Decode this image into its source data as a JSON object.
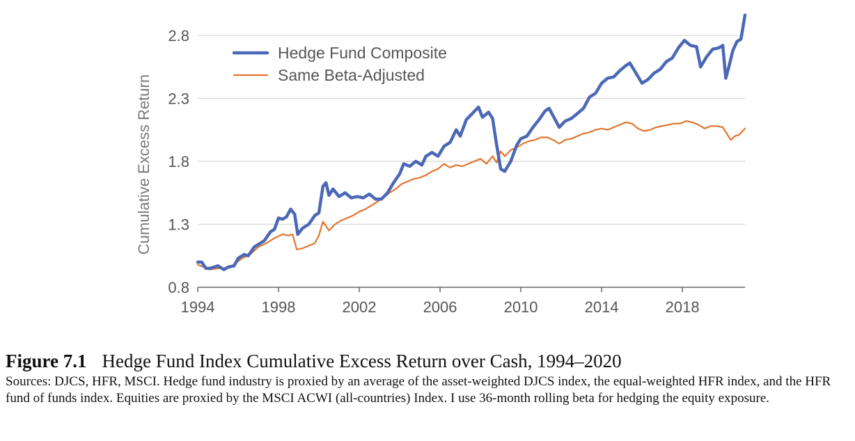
{
  "caption": {
    "figure_label": "Figure 7.1",
    "title": "Hedge Fund Index Cumulative Excess Return over Cash, 1994–2020",
    "body": "Sources: DJCS, HFR, MSCI. Hedge fund industry is proxied by an average of the asset-weighted DJCS index, the equal-weighted HFR index, and the HFR fund of funds index. Equities are proxied by the MSCI ACWI (all-countries) Index. I use 36-month rolling beta for hedging the equity exposure."
  },
  "chart_data": {
    "type": "line",
    "title": "",
    "xlabel": "",
    "ylabel": "Cumulative Excess Return",
    "xlim": [
      1994,
      2021.1
    ],
    "ylim": [
      0.8,
      2.97
    ],
    "x_ticks": [
      1994,
      1998,
      2002,
      2006,
      2010,
      2014,
      2018
    ],
    "y_ticks": [
      0.8,
      1.3,
      1.8,
      2.3,
      2.8
    ],
    "y_tick_labels": [
      "0.8",
      "1.3",
      "1.8",
      "2.3",
      "2.8"
    ],
    "grid": "horizontal",
    "legend_position": "top-left",
    "series": [
      {
        "name": "Hedge Fund Composite",
        "color": "#4a68b5",
        "points": [
          [
            1994.0,
            1.0
          ],
          [
            1994.2,
            1.0
          ],
          [
            1994.4,
            0.95
          ],
          [
            1994.6,
            0.95
          ],
          [
            1994.8,
            0.96
          ],
          [
            1995.0,
            0.97
          ],
          [
            1995.3,
            0.94
          ],
          [
            1995.5,
            0.96
          ],
          [
            1995.8,
            0.97
          ],
          [
            1996.0,
            1.03
          ],
          [
            1996.3,
            1.06
          ],
          [
            1996.5,
            1.05
          ],
          [
            1996.8,
            1.12
          ],
          [
            1997.0,
            1.14
          ],
          [
            1997.3,
            1.17
          ],
          [
            1997.6,
            1.24
          ],
          [
            1997.8,
            1.26
          ],
          [
            1998.0,
            1.35
          ],
          [
            1998.2,
            1.34
          ],
          [
            1998.4,
            1.36
          ],
          [
            1998.6,
            1.42
          ],
          [
            1998.8,
            1.38
          ],
          [
            1998.95,
            1.22
          ],
          [
            1999.2,
            1.27
          ],
          [
            1999.5,
            1.3
          ],
          [
            1999.8,
            1.37
          ],
          [
            2000.0,
            1.39
          ],
          [
            2000.2,
            1.6
          ],
          [
            2000.35,
            1.63
          ],
          [
            2000.5,
            1.53
          ],
          [
            2000.7,
            1.58
          ],
          [
            2001.0,
            1.52
          ],
          [
            2001.3,
            1.55
          ],
          [
            2001.6,
            1.51
          ],
          [
            2001.9,
            1.52
          ],
          [
            2002.2,
            1.51
          ],
          [
            2002.5,
            1.54
          ],
          [
            2002.8,
            1.5
          ],
          [
            2003.1,
            1.5
          ],
          [
            2003.4,
            1.55
          ],
          [
            2003.7,
            1.63
          ],
          [
            2004.0,
            1.7
          ],
          [
            2004.2,
            1.78
          ],
          [
            2004.5,
            1.76
          ],
          [
            2004.8,
            1.8
          ],
          [
            2005.1,
            1.77
          ],
          [
            2005.3,
            1.84
          ],
          [
            2005.6,
            1.87
          ],
          [
            2005.9,
            1.84
          ],
          [
            2006.2,
            1.92
          ],
          [
            2006.5,
            1.95
          ],
          [
            2006.8,
            2.05
          ],
          [
            2007.0,
            2.0
          ],
          [
            2007.3,
            2.13
          ],
          [
            2007.6,
            2.18
          ],
          [
            2007.9,
            2.23
          ],
          [
            2008.1,
            2.15
          ],
          [
            2008.4,
            2.19
          ],
          [
            2008.6,
            2.14
          ],
          [
            2008.8,
            1.93
          ],
          [
            2009.0,
            1.74
          ],
          [
            2009.2,
            1.72
          ],
          [
            2009.5,
            1.8
          ],
          [
            2009.8,
            1.93
          ],
          [
            2010.0,
            1.98
          ],
          [
            2010.3,
            2.0
          ],
          [
            2010.6,
            2.07
          ],
          [
            2010.9,
            2.13
          ],
          [
            2011.2,
            2.2
          ],
          [
            2011.4,
            2.22
          ],
          [
            2011.6,
            2.16
          ],
          [
            2011.9,
            2.07
          ],
          [
            2012.2,
            2.12
          ],
          [
            2012.5,
            2.14
          ],
          [
            2012.8,
            2.18
          ],
          [
            2013.1,
            2.22
          ],
          [
            2013.4,
            2.31
          ],
          [
            2013.7,
            2.34
          ],
          [
            2014.0,
            2.42
          ],
          [
            2014.3,
            2.46
          ],
          [
            2014.6,
            2.47
          ],
          [
            2014.9,
            2.52
          ],
          [
            2015.2,
            2.56
          ],
          [
            2015.4,
            2.58
          ],
          [
            2015.7,
            2.5
          ],
          [
            2016.0,
            2.42
          ],
          [
            2016.3,
            2.45
          ],
          [
            2016.6,
            2.5
          ],
          [
            2016.9,
            2.53
          ],
          [
            2017.2,
            2.59
          ],
          [
            2017.5,
            2.62
          ],
          [
            2017.8,
            2.7
          ],
          [
            2018.1,
            2.76
          ],
          [
            2018.4,
            2.72
          ],
          [
            2018.7,
            2.71
          ],
          [
            2018.9,
            2.55
          ],
          [
            2019.2,
            2.63
          ],
          [
            2019.5,
            2.69
          ],
          [
            2019.8,
            2.7
          ],
          [
            2020.0,
            2.72
          ],
          [
            2020.15,
            2.46
          ],
          [
            2020.3,
            2.55
          ],
          [
            2020.5,
            2.68
          ],
          [
            2020.7,
            2.75
          ],
          [
            2020.9,
            2.77
          ],
          [
            2021.1,
            2.96
          ]
        ]
      },
      {
        "name": "Same Beta-Adjusted",
        "color": "#e2742c",
        "points": [
          [
            1994.0,
            0.98
          ],
          [
            1994.3,
            0.96
          ],
          [
            1994.6,
            0.94
          ],
          [
            1995.0,
            0.95
          ],
          [
            1995.4,
            0.95
          ],
          [
            1995.8,
            0.98
          ],
          [
            1996.2,
            1.03
          ],
          [
            1996.6,
            1.06
          ],
          [
            1997.0,
            1.12
          ],
          [
            1997.4,
            1.15
          ],
          [
            1997.8,
            1.19
          ],
          [
            1998.2,
            1.22
          ],
          [
            1998.5,
            1.21
          ],
          [
            1998.7,
            1.22
          ],
          [
            1998.9,
            1.1
          ],
          [
            1999.2,
            1.11
          ],
          [
            1999.5,
            1.13
          ],
          [
            1999.8,
            1.15
          ],
          [
            2000.0,
            1.21
          ],
          [
            2000.2,
            1.32
          ],
          [
            2000.5,
            1.25
          ],
          [
            2000.8,
            1.3
          ],
          [
            2001.1,
            1.33
          ],
          [
            2001.4,
            1.35
          ],
          [
            2001.7,
            1.37
          ],
          [
            2002.0,
            1.4
          ],
          [
            2002.3,
            1.42
          ],
          [
            2002.6,
            1.45
          ],
          [
            2002.9,
            1.48
          ],
          [
            2003.2,
            1.51
          ],
          [
            2003.5,
            1.55
          ],
          [
            2003.8,
            1.58
          ],
          [
            2004.1,
            1.62
          ],
          [
            2004.4,
            1.64
          ],
          [
            2004.7,
            1.66
          ],
          [
            2005.0,
            1.67
          ],
          [
            2005.3,
            1.69
          ],
          [
            2005.6,
            1.72
          ],
          [
            2005.9,
            1.74
          ],
          [
            2006.2,
            1.78
          ],
          [
            2006.5,
            1.75
          ],
          [
            2006.8,
            1.77
          ],
          [
            2007.1,
            1.76
          ],
          [
            2007.4,
            1.78
          ],
          [
            2007.7,
            1.8
          ],
          [
            2008.0,
            1.82
          ],
          [
            2008.3,
            1.78
          ],
          [
            2008.6,
            1.84
          ],
          [
            2008.8,
            1.79
          ],
          [
            2009.0,
            1.88
          ],
          [
            2009.2,
            1.84
          ],
          [
            2009.5,
            1.89
          ],
          [
            2009.8,
            1.91
          ],
          [
            2010.1,
            1.94
          ],
          [
            2010.4,
            1.96
          ],
          [
            2010.7,
            1.97
          ],
          [
            2011.0,
            1.99
          ],
          [
            2011.3,
            1.99
          ],
          [
            2011.6,
            1.97
          ],
          [
            2011.9,
            1.94
          ],
          [
            2012.2,
            1.97
          ],
          [
            2012.5,
            1.98
          ],
          [
            2012.8,
            2.0
          ],
          [
            2013.1,
            2.02
          ],
          [
            2013.4,
            2.03
          ],
          [
            2013.7,
            2.05
          ],
          [
            2014.0,
            2.06
          ],
          [
            2014.3,
            2.05
          ],
          [
            2014.6,
            2.07
          ],
          [
            2014.9,
            2.09
          ],
          [
            2015.2,
            2.11
          ],
          [
            2015.5,
            2.1
          ],
          [
            2015.8,
            2.06
          ],
          [
            2016.1,
            2.04
          ],
          [
            2016.4,
            2.05
          ],
          [
            2016.7,
            2.07
          ],
          [
            2017.0,
            2.08
          ],
          [
            2017.3,
            2.09
          ],
          [
            2017.6,
            2.1
          ],
          [
            2017.9,
            2.1
          ],
          [
            2018.2,
            2.12
          ],
          [
            2018.5,
            2.11
          ],
          [
            2018.8,
            2.09
          ],
          [
            2019.1,
            2.06
          ],
          [
            2019.4,
            2.08
          ],
          [
            2019.7,
            2.08
          ],
          [
            2020.0,
            2.07
          ],
          [
            2020.2,
            2.02
          ],
          [
            2020.4,
            1.97
          ],
          [
            2020.6,
            2.0
          ],
          [
            2020.8,
            2.01
          ],
          [
            2021.1,
            2.06
          ]
        ]
      }
    ]
  }
}
